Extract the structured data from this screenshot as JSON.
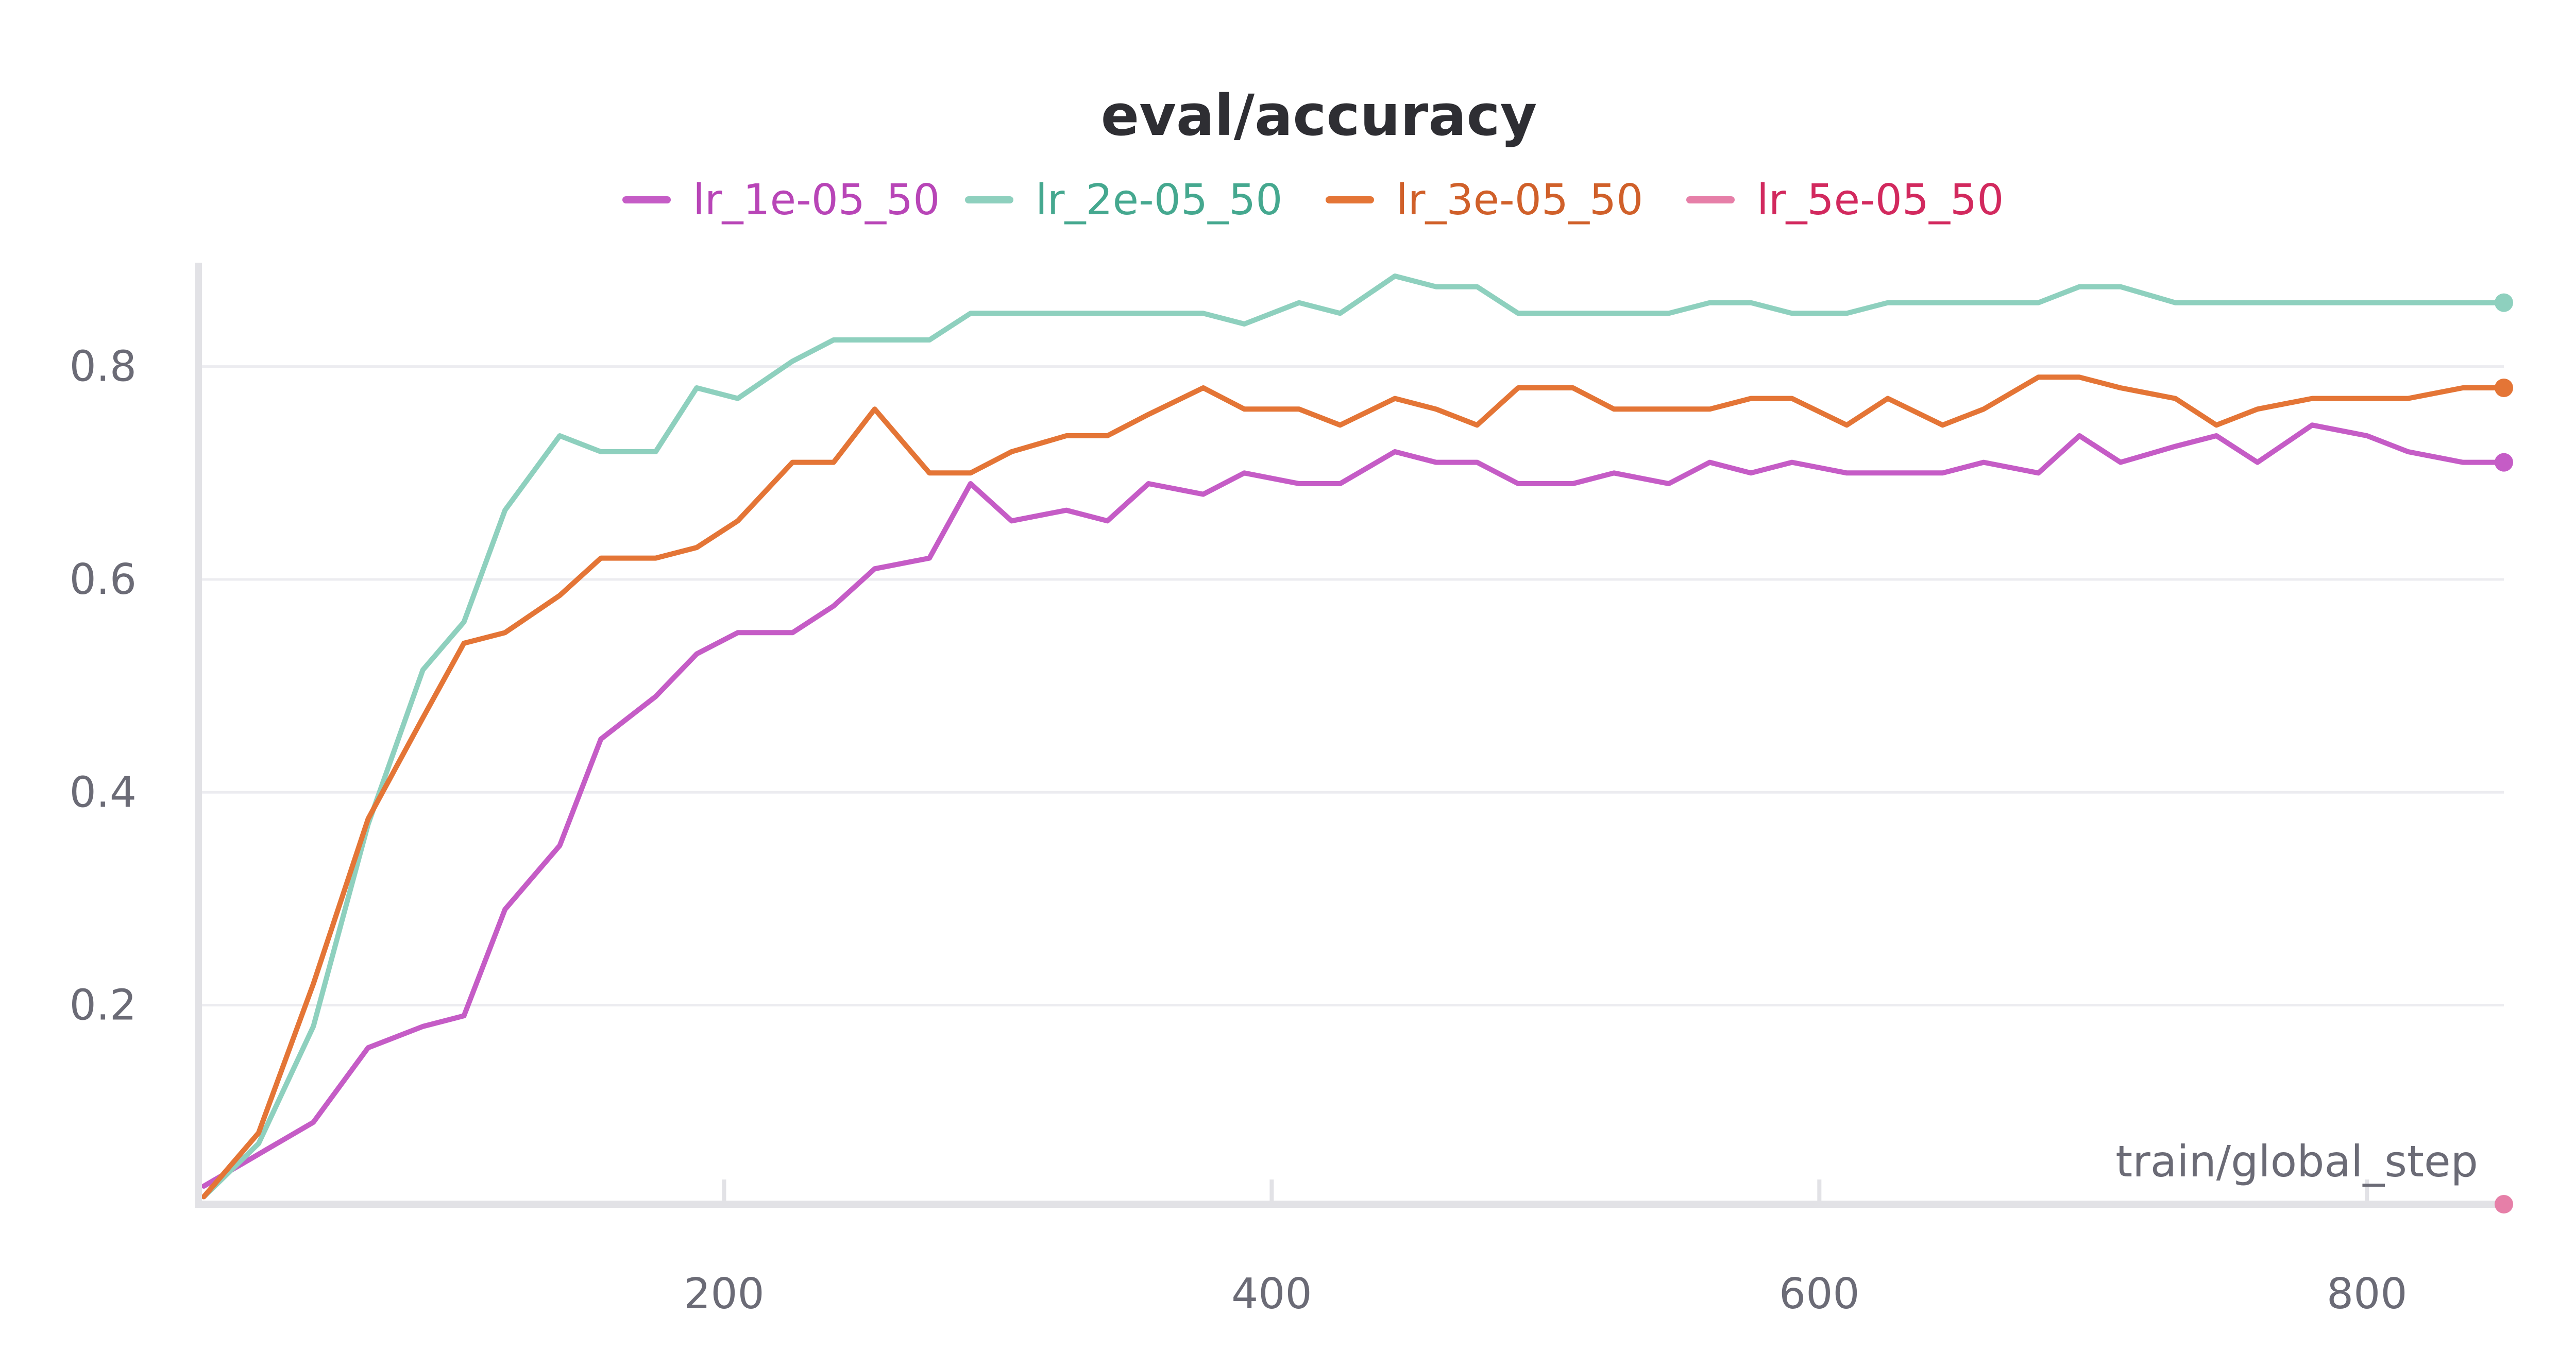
{
  "chart_data": {
    "type": "line",
    "title": "eval/accuracy",
    "xlabel": "train/global_step",
    "ylabel": "",
    "xlim": [
      8,
      850
    ],
    "ylim": [
      0.013,
      0.9
    ],
    "grid": true,
    "legend_position": "top-center",
    "xticks": [
      200,
      400,
      600,
      800
    ],
    "yticks": [
      0.2,
      0.4,
      0.6,
      0.8
    ],
    "series": [
      {
        "name": "lr_1e-05_50",
        "color": "#c55cc6",
        "text_color": "#b845b7",
        "end_marker": true,
        "x": [
          10,
          30,
          50,
          70,
          90,
          105,
          120,
          140,
          155,
          175,
          190,
          205,
          225,
          240,
          255,
          275,
          290,
          305,
          325,
          340,
          355,
          375,
          390,
          410,
          425,
          445,
          460,
          475,
          490,
          510,
          525,
          545,
          560,
          575,
          590,
          610,
          625,
          645,
          660,
          680,
          695,
          710,
          730,
          745,
          760,
          780,
          800,
          815,
          835,
          850
        ],
        "y": [
          0.03,
          0.06,
          0.09,
          0.16,
          0.18,
          0.19,
          0.29,
          0.35,
          0.45,
          0.49,
          0.53,
          0.55,
          0.55,
          0.575,
          0.61,
          0.62,
          0.69,
          0.655,
          0.665,
          0.655,
          0.69,
          0.68,
          0.7,
          0.69,
          0.69,
          0.72,
          0.71,
          0.71,
          0.69,
          0.69,
          0.7,
          0.69,
          0.71,
          0.7,
          0.71,
          0.7,
          0.7,
          0.7,
          0.71,
          0.7,
          0.735,
          0.71,
          0.725,
          0.735,
          0.71,
          0.745,
          0.735,
          0.72,
          0.71,
          0.71
        ]
      },
      {
        "name": "lr_2e-05_50",
        "color": "#8ed0be",
        "text_color": "#45a88f",
        "end_marker": true,
        "x": [
          10,
          30,
          50,
          70,
          90,
          105,
          120,
          140,
          155,
          175,
          190,
          205,
          225,
          240,
          255,
          275,
          290,
          305,
          325,
          340,
          355,
          375,
          390,
          410,
          425,
          445,
          460,
          475,
          490,
          510,
          525,
          545,
          560,
          575,
          590,
          610,
          625,
          645,
          660,
          680,
          695,
          710,
          730,
          745,
          760,
          780,
          800,
          815,
          835,
          850
        ],
        "y": [
          0.02,
          0.07,
          0.18,
          0.37,
          0.515,
          0.56,
          0.665,
          0.735,
          0.72,
          0.72,
          0.78,
          0.77,
          0.805,
          0.825,
          0.825,
          0.825,
          0.85,
          0.85,
          0.85,
          0.85,
          0.85,
          0.85,
          0.84,
          0.86,
          0.85,
          0.885,
          0.875,
          0.875,
          0.85,
          0.85,
          0.85,
          0.85,
          0.86,
          0.86,
          0.85,
          0.85,
          0.86,
          0.86,
          0.86,
          0.86,
          0.875,
          0.875,
          0.86,
          0.86,
          0.86,
          0.86,
          0.86,
          0.86,
          0.86,
          0.86
        ]
      },
      {
        "name": "lr_3e-05_50",
        "color": "#e47536",
        "text_color": "#d0602a",
        "end_marker": true,
        "x": [
          10,
          30,
          50,
          70,
          90,
          105,
          120,
          140,
          155,
          175,
          190,
          205,
          225,
          240,
          255,
          275,
          290,
          305,
          325,
          340,
          355,
          375,
          390,
          410,
          425,
          445,
          460,
          475,
          490,
          510,
          525,
          545,
          560,
          575,
          590,
          610,
          625,
          645,
          660,
          680,
          695,
          710,
          730,
          745,
          760,
          780,
          800,
          815,
          835,
          850
        ],
        "y": [
          0.02,
          0.08,
          0.22,
          0.375,
          0.47,
          0.54,
          0.55,
          0.585,
          0.62,
          0.62,
          0.63,
          0.655,
          0.71,
          0.71,
          0.76,
          0.7,
          0.7,
          0.72,
          0.735,
          0.735,
          0.755,
          0.78,
          0.76,
          0.76,
          0.745,
          0.77,
          0.76,
          0.745,
          0.78,
          0.78,
          0.76,
          0.76,
          0.76,
          0.77,
          0.77,
          0.745,
          0.77,
          0.745,
          0.76,
          0.79,
          0.79,
          0.78,
          0.77,
          0.745,
          0.76,
          0.77,
          0.77,
          0.77,
          0.78,
          0.78
        ]
      },
      {
        "name": "lr_5e-05_50",
        "color": "#e67fa8",
        "text_color": "#d2295e",
        "end_marker": true,
        "x": [
          850
        ],
        "y": [
          0.013
        ]
      }
    ]
  }
}
